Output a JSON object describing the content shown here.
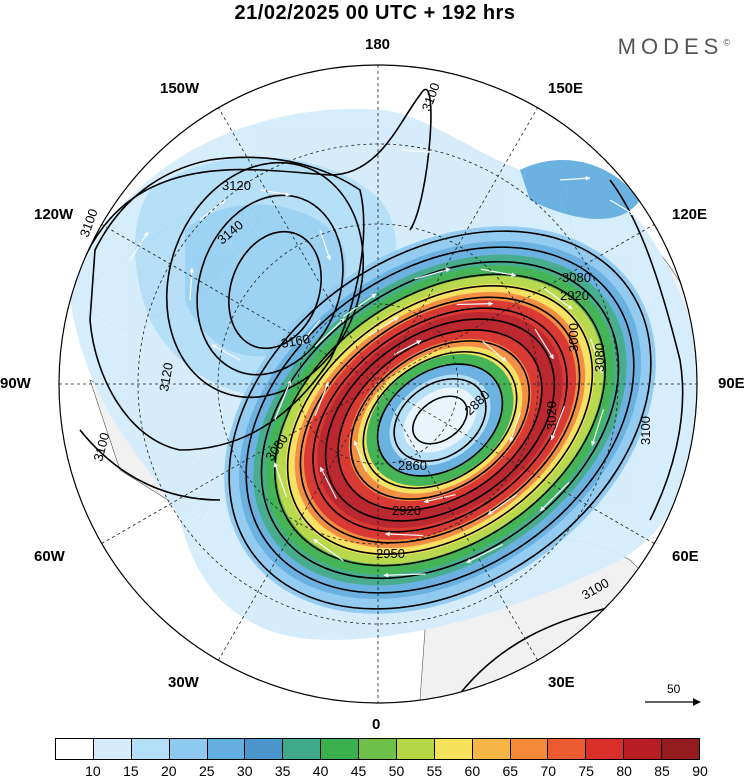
{
  "header": {
    "title": "21/02/2025  00 UTC  + 192 hrs",
    "brand": "MODES",
    "brand_mark": "©"
  },
  "longitude_labels": {
    "n180": "180",
    "w150": "150W",
    "e150": "150E",
    "w120": "120W",
    "e120": "120E",
    "w90": "90W",
    "e90": "90E",
    "w60": "60W",
    "e60": "60E",
    "w30": "30W",
    "e30": "30E",
    "s0": "0"
  },
  "contour_labels": [
    "3100",
    "3120",
    "3140",
    "3160",
    "3120",
    "3100",
    "3080",
    "3100",
    "3080",
    "3080",
    "3100",
    "3100",
    "2860",
    "2880",
    "2920",
    "2950",
    "2920",
    "3020",
    "3000"
  ],
  "reference_vector": {
    "label": "50"
  },
  "colorbar": {
    "colors": [
      "#ffffff",
      "#d4ecfb",
      "#b3def8",
      "#8ecaf0",
      "#64aee0",
      "#4a95cc",
      "#3fa98a",
      "#3bb04e",
      "#6ec04a",
      "#b5d645",
      "#f5e15a",
      "#f7b546",
      "#f38a3a",
      "#ec5b2f",
      "#d9302a",
      "#b81d24",
      "#941c1e"
    ],
    "ticks": [
      "10",
      "15",
      "20",
      "25",
      "30",
      "35",
      "40",
      "45",
      "50",
      "55",
      "60",
      "65",
      "70",
      "75",
      "80",
      "85",
      "90"
    ]
  },
  "legend_semantics": {
    "shading": "wind speed",
    "contours": "geopotential height",
    "arrows": "wind vectors"
  }
}
